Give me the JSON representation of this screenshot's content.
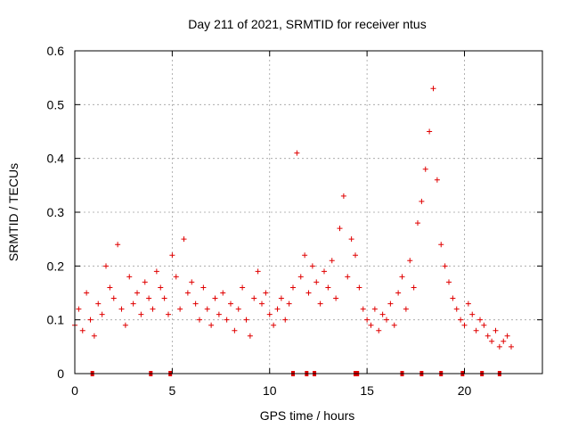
{
  "colors": {
    "series": "#e00000",
    "axis": "#000000",
    "grid": "#a0a0a0",
    "background": "#ffffff"
  },
  "chart_data": {
    "type": "scatter",
    "title": "Day 211 of 2021, SRMTID for receiver ntus",
    "xlabel": "GPS time / hours",
    "ylabel": "SRMTID / TECUs",
    "xlim": [
      0,
      24
    ],
    "ylim": [
      0,
      0.6
    ],
    "grid": true,
    "marker": "+",
    "x_ticks": [
      0,
      5,
      10,
      15,
      20
    ],
    "x_tick_labels": [
      "0",
      "5",
      "10",
      "15",
      "20"
    ],
    "y_ticks": [
      0,
      0.1,
      0.2,
      0.3,
      0.4,
      0.5,
      0.6
    ],
    "y_tick_labels": [
      "0",
      "0.1",
      "0.2",
      "0.3",
      "0.4",
      "0.5",
      "0.6"
    ],
    "gap_markers_x": [
      0.9,
      3.9,
      4.9,
      11.2,
      11.9,
      12.3,
      14.4,
      14.5,
      16.8,
      17.8,
      18.8,
      19.9,
      20.9,
      21.8
    ],
    "series": [
      {
        "name": "SRMTID",
        "x": [
          0.0,
          0.2,
          0.4,
          0.6,
          0.8,
          1.0,
          1.2,
          1.4,
          1.6,
          1.8,
          2.0,
          2.2,
          2.4,
          2.6,
          2.8,
          3.0,
          3.2,
          3.4,
          3.6,
          3.8,
          4.0,
          4.2,
          4.4,
          4.6,
          4.8,
          5.0,
          5.2,
          5.4,
          5.6,
          5.8,
          6.0,
          6.2,
          6.4,
          6.6,
          6.8,
          7.0,
          7.2,
          7.4,
          7.6,
          7.8,
          8.0,
          8.2,
          8.4,
          8.6,
          8.8,
          9.0,
          9.2,
          9.4,
          9.6,
          9.8,
          10.0,
          10.2,
          10.4,
          10.6,
          10.8,
          11.0,
          11.2,
          11.4,
          11.6,
          11.8,
          12.0,
          12.2,
          12.4,
          12.6,
          12.8,
          13.0,
          13.2,
          13.4,
          13.6,
          13.8,
          14.0,
          14.2,
          14.4,
          14.6,
          14.8,
          15.0,
          15.2,
          15.4,
          15.6,
          15.8,
          16.0,
          16.2,
          16.4,
          16.6,
          16.8,
          17.0,
          17.2,
          17.4,
          17.6,
          17.8,
          18.0,
          18.2,
          18.4,
          18.6,
          18.8,
          19.0,
          19.2,
          19.4,
          19.6,
          19.8,
          20.0,
          20.2,
          20.4,
          20.6,
          20.8,
          21.0,
          21.2,
          21.4,
          21.6,
          21.8,
          22.0,
          22.2,
          22.4
        ],
        "y": [
          0.09,
          0.12,
          0.08,
          0.15,
          0.1,
          0.07,
          0.13,
          0.11,
          0.2,
          0.16,
          0.14,
          0.24,
          0.12,
          0.09,
          0.18,
          0.13,
          0.15,
          0.11,
          0.17,
          0.14,
          0.12,
          0.19,
          0.16,
          0.14,
          0.11,
          0.22,
          0.18,
          0.12,
          0.25,
          0.15,
          0.17,
          0.13,
          0.1,
          0.16,
          0.12,
          0.09,
          0.14,
          0.11,
          0.15,
          0.1,
          0.13,
          0.08,
          0.12,
          0.16,
          0.1,
          0.07,
          0.14,
          0.19,
          0.13,
          0.15,
          0.11,
          0.09,
          0.12,
          0.14,
          0.1,
          0.13,
          0.16,
          0.41,
          0.18,
          0.22,
          0.15,
          0.2,
          0.17,
          0.13,
          0.19,
          0.16,
          0.21,
          0.14,
          0.27,
          0.33,
          0.18,
          0.25,
          0.22,
          0.16,
          0.12,
          0.1,
          0.09,
          0.12,
          0.08,
          0.11,
          0.1,
          0.13,
          0.09,
          0.15,
          0.18,
          0.12,
          0.21,
          0.16,
          0.28,
          0.32,
          0.38,
          0.45,
          0.53,
          0.36,
          0.24,
          0.2,
          0.17,
          0.14,
          0.12,
          0.1,
          0.09,
          0.13,
          0.11,
          0.08,
          0.1,
          0.09,
          0.07,
          0.06,
          0.08,
          0.05,
          0.06,
          0.07,
          0.05
        ]
      }
    ]
  }
}
